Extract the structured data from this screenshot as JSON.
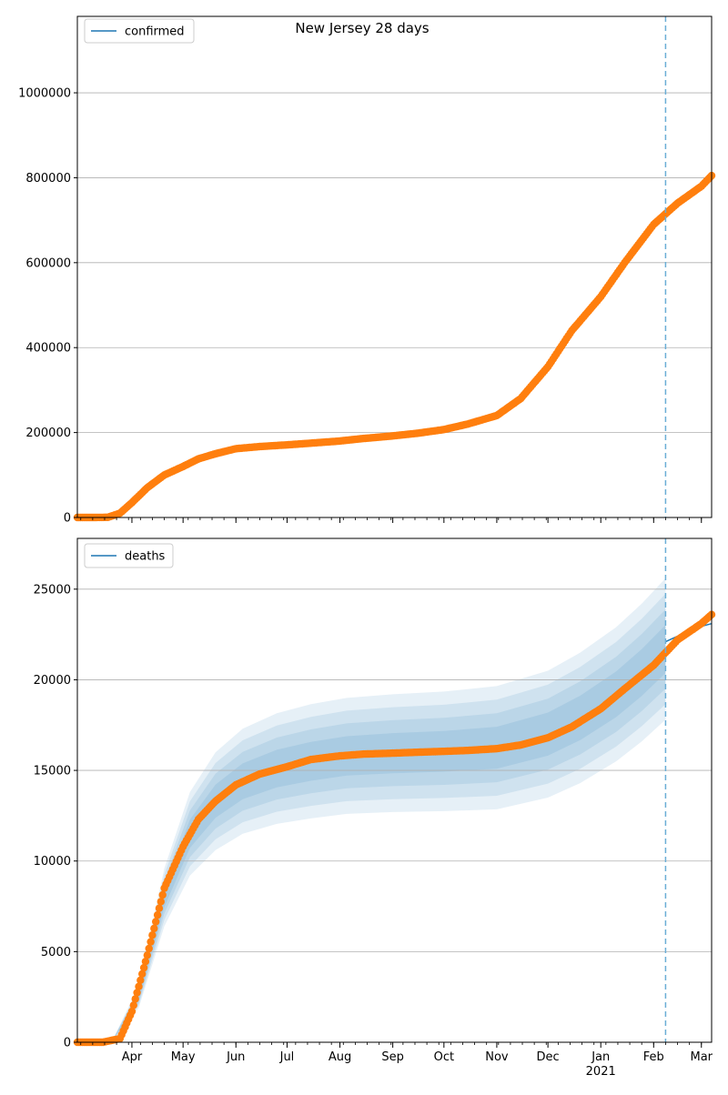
{
  "title": "New Jersey 28 days",
  "chart_data": [
    {
      "type": "line",
      "legend_label": "confirmed",
      "legend_position": "top-left",
      "ylim": [
        0,
        1180000
      ],
      "yticks": [
        0,
        200000,
        400000,
        600000,
        800000,
        1000000
      ],
      "grid": "y",
      "forecast_start": "2021-02-08",
      "series": [
        {
          "name": "confirmed",
          "x": [
            "2020-02-29",
            "2020-03-10",
            "2020-03-18",
            "2020-03-25",
            "2020-04-01",
            "2020-04-10",
            "2020-04-20",
            "2020-05-01",
            "2020-05-10",
            "2020-05-20",
            "2020-06-01",
            "2020-06-15",
            "2020-07-01",
            "2020-07-15",
            "2020-08-01",
            "2020-08-15",
            "2020-09-01",
            "2020-09-15",
            "2020-10-01",
            "2020-10-15",
            "2020-11-01",
            "2020-11-15",
            "2020-12-01",
            "2020-12-15",
            "2021-01-01",
            "2021-01-15",
            "2021-02-01",
            "2021-02-15",
            "2021-03-01",
            "2021-03-07"
          ],
          "y": [
            0,
            0,
            500,
            10000,
            35000,
            70000,
            100000,
            120000,
            138000,
            150000,
            162000,
            167000,
            171000,
            175000,
            180000,
            186000,
            192000,
            198000,
            207000,
            220000,
            240000,
            280000,
            355000,
            440000,
            520000,
            600000,
            690000,
            740000,
            780000,
            805000
          ]
        }
      ]
    },
    {
      "type": "line",
      "legend_label": "deaths",
      "legend_position": "top-left",
      "ylim": [
        0,
        27800
      ],
      "yticks": [
        0,
        5000,
        10000,
        15000,
        20000,
        25000
      ],
      "grid": "y",
      "forecast_start": "2021-02-08",
      "x_tick_labels": [
        "Apr",
        "May",
        "Jun",
        "Jul",
        "Aug",
        "Sep",
        "Oct",
        "Nov",
        "Dec",
        "Jan",
        "Feb",
        "Mar"
      ],
      "x_year_label": "2021",
      "series": [
        {
          "name": "deaths",
          "x": [
            "2020-02-29",
            "2020-03-15",
            "2020-03-25",
            "2020-04-01",
            "2020-04-10",
            "2020-04-20",
            "2020-05-01",
            "2020-05-10",
            "2020-05-20",
            "2020-06-01",
            "2020-06-15",
            "2020-07-01",
            "2020-07-15",
            "2020-08-01",
            "2020-08-15",
            "2020-09-01",
            "2020-09-15",
            "2020-10-01",
            "2020-10-15",
            "2020-11-01",
            "2020-11-15",
            "2020-12-01",
            "2020-12-15",
            "2021-01-01",
            "2021-01-15",
            "2021-02-01",
            "2021-02-15",
            "2021-03-01",
            "2021-03-07"
          ],
          "y": [
            0,
            0,
            200,
            1700,
            4800,
            8500,
            10800,
            12300,
            13300,
            14200,
            14800,
            15200,
            15600,
            15800,
            15900,
            15950,
            16000,
            16050,
            16100,
            16200,
            16400,
            16800,
            17400,
            18400,
            19500,
            20800,
            22200,
            23100,
            23600
          ]
        },
        {
          "name": "forecast",
          "x": [
            "2021-02-08",
            "2021-02-15",
            "2021-02-22",
            "2021-03-01",
            "2021-03-07"
          ],
          "y": [
            22100,
            22400,
            22700,
            22950,
            23100
          ]
        }
      ],
      "bands": {
        "x": [
          "2020-03-20",
          "2020-04-05",
          "2020-04-20",
          "2020-05-05",
          "2020-05-20",
          "2020-06-05",
          "2020-06-25",
          "2020-07-15",
          "2020-08-05",
          "2020-09-01",
          "2020-10-01",
          "2020-11-01",
          "2020-12-01",
          "2020-12-20",
          "2021-01-10",
          "2021-01-25",
          "2021-02-08"
        ],
        "center": [
          0,
          2500,
          8000,
          11500,
          13300,
          14400,
          15100,
          15500,
          15800,
          15950,
          16050,
          16250,
          17000,
          17900,
          19200,
          20400,
          21700
        ],
        "spread": [
          0,
          600,
          1600,
          2300,
          2700,
          2900,
          3050,
          3150,
          3200,
          3250,
          3300,
          3400,
          3500,
          3600,
          3700,
          3800,
          3900
        ]
      }
    }
  ],
  "colors": {
    "observed": "#ff7f0e",
    "model": "#1f77b4",
    "band": "#1f77b4",
    "forecast_line": "#6baed6",
    "grid": "#b0b0b0"
  }
}
